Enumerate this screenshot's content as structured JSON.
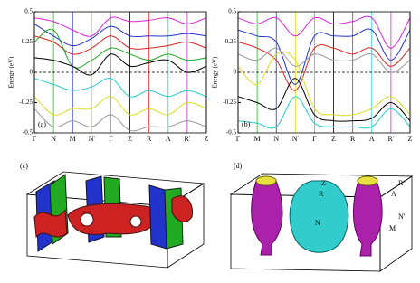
{
  "chart_data": [
    {
      "type": "line",
      "panel_label": "(a)",
      "y_label": "Energy (eV)",
      "categories": [
        "Γ",
        "N",
        "M",
        "N'",
        "Γ",
        "Z",
        "R",
        "A",
        "R'",
        "Z"
      ],
      "ylim": [
        -0.5,
        0.5
      ],
      "yticks": [
        0.5,
        0.25,
        0,
        -0.25,
        -0.5
      ],
      "kline_colors": [
        "#000000",
        "#22bb22",
        "#2233cc",
        "#dddd22",
        "#999999",
        "#000000",
        "#dd2222",
        "#22cccc",
        "#dd22dd",
        "#000000"
      ],
      "series": [
        {
          "color": "#dd22dd",
          "values": [
            0.45,
            0.42,
            0.35,
            0.3,
            0.45,
            0.42,
            0.43,
            0.45,
            0.4,
            0.45
          ]
        },
        {
          "color": "#2233cc",
          "values": [
            0.4,
            0.3,
            0.22,
            0.28,
            0.38,
            0.3,
            0.3,
            0.3,
            0.32,
            0.3
          ]
        },
        {
          "color": "#dd2222",
          "values": [
            0.3,
            0.25,
            0.15,
            0.2,
            0.3,
            0.2,
            0.2,
            0.22,
            0.25,
            0.2
          ]
        },
        {
          "color": "#22aa22",
          "values": [
            0.25,
            0.35,
            0.05,
            0.1,
            0.2,
            0.15,
            0.1,
            0.15,
            0.1,
            0.12
          ]
        },
        {
          "color": "#000000",
          "values": [
            0.12,
            0.1,
            0.05,
            -0.02,
            0.15,
            0.05,
            0.08,
            0.1,
            0.0,
            0.05
          ]
        },
        {
          "color": "#22cccc",
          "values": [
            -0.05,
            -0.1,
            -0.15,
            -0.12,
            -0.05,
            -0.2,
            -0.15,
            -0.2,
            -0.15,
            -0.2
          ]
        },
        {
          "color": "#dddd22",
          "values": [
            -0.2,
            -0.35,
            -0.3,
            -0.3,
            -0.2,
            -0.35,
            -0.3,
            -0.35,
            -0.25,
            -0.3
          ]
        },
        {
          "color": "#999999",
          "values": [
            -0.3,
            -0.45,
            -0.4,
            -0.45,
            -0.35,
            -0.48,
            -0.45,
            -0.45,
            -0.4,
            -0.45
          ]
        }
      ]
    },
    {
      "type": "line",
      "panel_label": "(b)",
      "y_label": "Energy (eV)",
      "categories": [
        "Γ",
        "M",
        "N",
        "N'",
        "Γ",
        "Z",
        "R",
        "A",
        "R'",
        "Z"
      ],
      "ylim": [
        -0.5,
        0.5
      ],
      "yticks": [
        0.5,
        0.25,
        0,
        -0.25,
        -0.5
      ],
      "kline_colors": [
        "#000000",
        "#22bb22",
        "#2233cc",
        "#dddd22",
        "#999999",
        "#000000",
        "#dd2222",
        "#22cccc",
        "#dd22dd",
        "#000000"
      ],
      "series": [
        {
          "color": "#dd22dd",
          "values": [
            0.45,
            0.4,
            0.45,
            0.3,
            0.45,
            0.4,
            0.42,
            0.45,
            0.2,
            0.45
          ]
        },
        {
          "color": "#2233cc",
          "values": [
            0.35,
            0.3,
            0.25,
            -0.1,
            0.3,
            0.3,
            0.3,
            0.35,
            0.1,
            0.35
          ]
        },
        {
          "color": "#dd2222",
          "values": [
            0.25,
            0.2,
            0.1,
            -0.15,
            0.2,
            0.2,
            0.15,
            0.2,
            0.05,
            0.2
          ]
        },
        {
          "color": "#999999",
          "values": [
            0.15,
            0.1,
            0.2,
            0.05,
            0.15,
            0.1,
            0.1,
            0.15,
            0.0,
            0.1
          ]
        },
        {
          "color": "#dddd22",
          "values": [
            0.05,
            -0.1,
            0.15,
            0.1,
            -0.3,
            -0.35,
            -0.35,
            -0.3,
            -0.2,
            -0.35
          ]
        },
        {
          "color": "#000000",
          "values": [
            -0.2,
            -0.25,
            -0.3,
            -0.05,
            -0.35,
            -0.4,
            -0.4,
            -0.38,
            -0.25,
            -0.4
          ]
        },
        {
          "color": "#22cccc",
          "values": [
            -0.4,
            -0.42,
            -0.45,
            -0.2,
            -0.42,
            -0.45,
            -0.45,
            -0.45,
            -0.3,
            -0.45
          ]
        }
      ]
    }
  ],
  "fermi_surfaces": {
    "c": {
      "panel_label": "(c)"
    },
    "d": {
      "panel_label": "(d)",
      "points": [
        "Z",
        "R",
        "R'",
        "A",
        "N'",
        "M",
        "N"
      ]
    }
  }
}
